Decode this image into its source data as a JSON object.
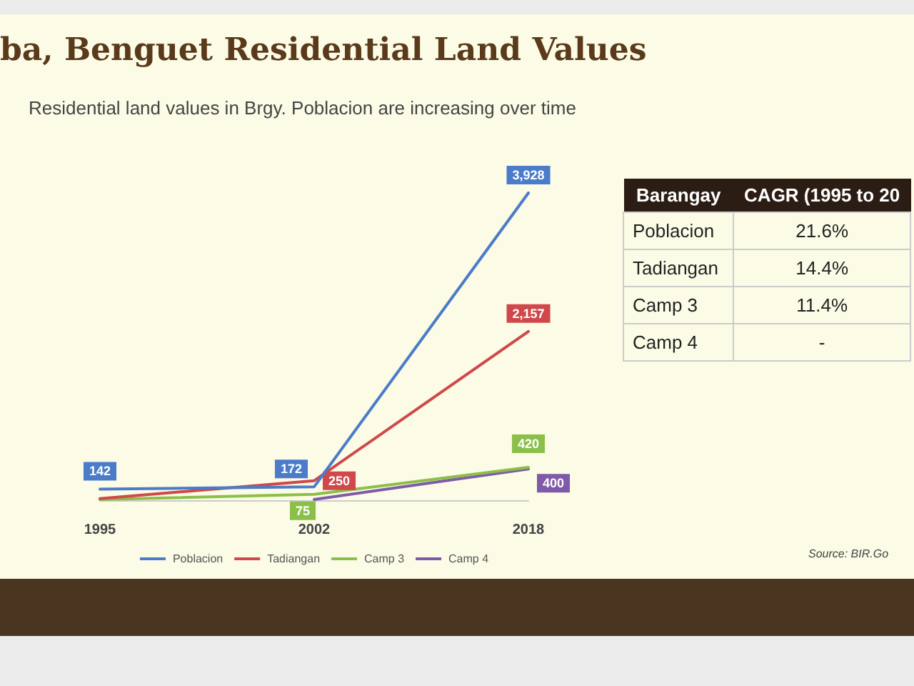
{
  "chart_data": {
    "type": "line",
    "title": "ba, Benguet Residential Land Values",
    "subtitle": "Residential land values in Brgy. Poblacion are increasing over time",
    "categories": [
      "1995",
      "2002",
      "2018"
    ],
    "series": [
      {
        "name": "Poblacion",
        "color": "#4a7cc9",
        "values": [
          142,
          172,
          3928
        ],
        "value_labels": [
          "142",
          "172",
          "3,928"
        ]
      },
      {
        "name": "Tadiangan",
        "color": "#d0484a",
        "values": [
          20,
          250,
          2157
        ],
        "value_labels": [
          null,
          "250",
          "2,157"
        ]
      },
      {
        "name": "Camp 3",
        "color": "#8cbf4a",
        "values": [
          10,
          75,
          420
        ],
        "value_labels": [
          null,
          "75",
          "420"
        ]
      },
      {
        "name": "Camp 4",
        "color": "#7f5aa8",
        "values": [
          null,
          10,
          400
        ],
        "value_labels": [
          null,
          null,
          "400"
        ]
      }
    ],
    "legend": "bottom",
    "marker": "none",
    "grid": false,
    "annotations": [
      "Source: BIR.Go",
      "Barangay",
      "CAGR (1995 to 20",
      "Poblacion",
      "21.6%",
      "Tadiangan",
      "14.4%",
      "Camp 3",
      "11.4%",
      "Camp 4",
      "-"
    ]
  }
}
